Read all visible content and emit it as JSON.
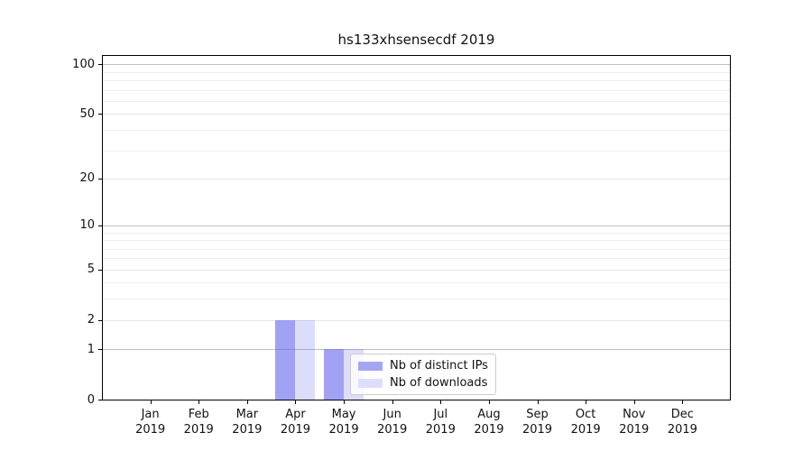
{
  "figure": {
    "title": "hs133xhsensecdf 2019",
    "background_color": "#ffffff"
  },
  "legend": {
    "items": [
      {
        "label": "Nb of distinct IPs",
        "swatch_color": "#a5a5f6"
      },
      {
        "label": "Nb of downloads",
        "swatch_color": "#dedefc"
      }
    ]
  },
  "chart_data": {
    "type": "bar",
    "title": "hs133xhsensecdf 2019",
    "categories": [
      "Jan 2019",
      "Feb 2019",
      "Mar 2019",
      "Apr 2019",
      "May 2019",
      "Jun 2019",
      "Jul 2019",
      "Aug 2019",
      "Sep 2019",
      "Oct 2019",
      "Nov 2019",
      "Dec 2019"
    ],
    "series": [
      {
        "name": "Nb of distinct IPs",
        "values": [
          0,
          0,
          0,
          2,
          1,
          0,
          0,
          0,
          0,
          0,
          0,
          0
        ],
        "color": "rgba(92, 92, 238, 0.57)"
      },
      {
        "name": "Nb of downloads",
        "values": [
          0,
          0,
          0,
          2,
          1,
          0,
          0,
          0,
          0,
          0,
          0,
          0
        ],
        "color": "rgba(92, 92, 238, 0.21)"
      }
    ],
    "xlabel": "",
    "ylabel": "",
    "yscale": "log1p",
    "ytick_values": [
      0,
      1,
      2,
      5,
      10,
      20,
      50,
      100
    ],
    "ylim": [
      0,
      114
    ],
    "grid": true,
    "legend_position": "lower center",
    "grid_colors": {
      "major": "#bfbfbf",
      "labeled": "#e6e6e6",
      "minor": "#eeeeee"
    }
  }
}
